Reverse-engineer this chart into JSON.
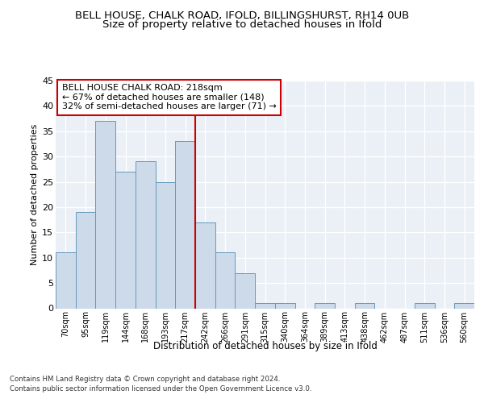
{
  "title": "BELL HOUSE, CHALK ROAD, IFOLD, BILLINGSHURST, RH14 0UB",
  "subtitle": "Size of property relative to detached houses in Ifold",
  "xlabel": "Distribution of detached houses by size in Ifold",
  "ylabel": "Number of detached properties",
  "categories": [
    "70sqm",
    "95sqm",
    "119sqm",
    "144sqm",
    "168sqm",
    "193sqm",
    "217sqm",
    "242sqm",
    "266sqm",
    "291sqm",
    "315sqm",
    "340sqm",
    "364sqm",
    "389sqm",
    "413sqm",
    "438sqm",
    "462sqm",
    "487sqm",
    "511sqm",
    "536sqm",
    "560sqm"
  ],
  "values": [
    11,
    19,
    37,
    27,
    29,
    25,
    33,
    17,
    11,
    7,
    1,
    1,
    0,
    1,
    0,
    1,
    0,
    0,
    1,
    0,
    1
  ],
  "bar_color": "#ccdaea",
  "bar_edge_color": "#6699bb",
  "ref_line_x": 6.5,
  "ref_line_color": "#cc0000",
  "annotation_text": "BELL HOUSE CHALK ROAD: 218sqm\n← 67% of detached houses are smaller (148)\n32% of semi-detached houses are larger (71) →",
  "annotation_box_color": "#ffffff",
  "annotation_box_edge_color": "#cc0000",
  "ylim": [
    0,
    45
  ],
  "yticks": [
    0,
    5,
    10,
    15,
    20,
    25,
    30,
    35,
    40,
    45
  ],
  "background_color": "#eaf0f6",
  "grid_color": "#ffffff",
  "footer_line1": "Contains HM Land Registry data © Crown copyright and database right 2024.",
  "footer_line2": "Contains public sector information licensed under the Open Government Licence v3.0.",
  "title_fontsize": 9.5,
  "subtitle_fontsize": 9.5,
  "annotation_fontsize": 8,
  "ylabel_fontsize": 8,
  "xlabel_fontsize": 8.5,
  "footer_fontsize": 6.2
}
